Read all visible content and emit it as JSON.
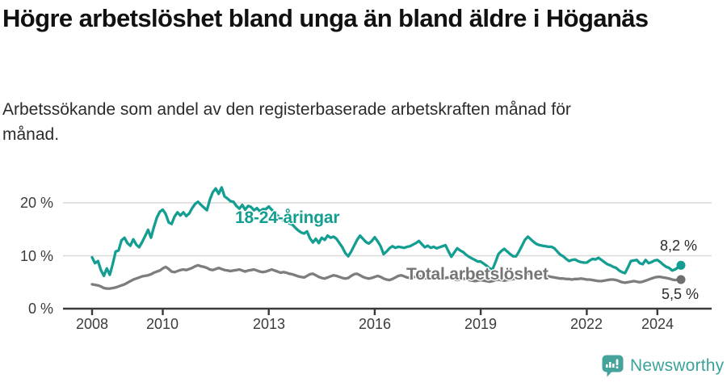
{
  "header": {
    "title": "Högre arbetslöshet bland unga än bland äldre i Höganäs",
    "subtitle": "Arbetssökande som andel av den registerbaserade arbetskraften månad för månad."
  },
  "chart_data": {
    "type": "line",
    "title": "Högre arbetslöshet bland unga än bland äldre i Höganäs",
    "unit": "%",
    "frequency": "monthly",
    "start_month": "2008-01",
    "end_month": "2024-09",
    "grid": "horizontal",
    "legend_position": "inline-labels",
    "x_tick_years": [
      2008,
      2010,
      2013,
      2016,
      2019,
      2022,
      2024
    ],
    "y_ticks": [
      {
        "value": 0,
        "label": "0 %"
      },
      {
        "value": 10,
        "label": "10 %"
      },
      {
        "value": 20,
        "label": "20 %"
      }
    ],
    "ylim": [
      0,
      23
    ],
    "series": [
      {
        "name": "18-24-åringar",
        "color": "#149e91",
        "dot_color": "#149e91",
        "end_value": 8.2,
        "end_label": "8,2 %",
        "values": [
          9.7,
          8.6,
          9.0,
          7.3,
          6.2,
          7.6,
          6.4,
          8.4,
          10.8,
          11.0,
          12.9,
          13.4,
          12.4,
          11.9,
          13.1,
          12.1,
          11.6,
          12.6,
          13.7,
          14.9,
          13.4,
          15.4,
          17.2,
          18.3,
          18.7,
          17.9,
          16.3,
          16.0,
          17.4,
          18.2,
          17.6,
          18.2,
          17.5,
          18.0,
          19.0,
          19.8,
          20.2,
          19.6,
          19.1,
          18.6,
          20.6,
          22.0,
          22.7,
          21.7,
          22.9,
          21.2,
          20.8,
          20.3,
          20.2,
          19.4,
          18.9,
          19.6,
          18.7,
          19.4,
          19.2,
          18.6,
          19.0,
          18.4,
          18.8,
          18.8,
          19.3,
          18.7,
          18.2,
          17.6,
          17.1,
          16.6,
          16.9,
          16.1,
          15.9,
          15.3,
          14.8,
          14.4,
          14.2,
          14.6,
          13.3,
          12.5,
          13.2,
          12.4,
          13.4,
          13.0,
          13.8,
          13.4,
          13.6,
          13.2,
          12.4,
          11.6,
          10.5,
          9.9,
          10.8,
          11.9,
          13.0,
          13.8,
          13.2,
          12.6,
          12.3,
          12.8,
          13.5,
          12.7,
          11.8,
          10.3,
          10.8,
          11.4,
          11.8,
          11.5,
          11.7,
          11.6,
          11.5,
          11.7,
          11.8,
          12.1,
          12.4,
          12.8,
          12.2,
          11.6,
          11.9,
          11.5,
          11.7,
          11.4,
          11.6,
          11.8,
          12.0,
          10.9,
          9.8,
          10.6,
          11.4,
          11.0,
          10.7,
          10.2,
          9.8,
          9.5,
          9.2,
          8.9,
          8.9,
          8.5,
          8.1,
          7.6,
          7.4,
          8.8,
          10.3,
          10.9,
          11.3,
          10.8,
          10.3,
          9.9,
          9.9,
          10.8,
          11.9,
          13.0,
          13.6,
          13.1,
          12.6,
          12.2,
          12.0,
          11.9,
          11.8,
          11.7,
          11.7,
          11.4,
          10.8,
          10.2,
          9.9,
          9.4,
          9.0,
          9.2,
          9.3,
          9.0,
          8.8,
          8.7,
          8.7,
          9.1,
          9.4,
          9.3,
          9.6,
          9.2,
          8.8,
          8.4,
          8.2,
          7.9,
          7.7,
          7.2,
          6.9,
          6.7,
          7.8,
          9.0,
          9.1,
          9.2,
          8.6,
          8.4,
          9.2,
          8.6,
          8.8,
          9.1,
          9.2,
          8.8,
          8.3,
          7.9,
          7.7,
          7.2,
          7.4,
          7.8,
          8.2
        ]
      },
      {
        "name": "Total arbetslöshet",
        "color": "#7d7d7d",
        "dot_color": "#6e6e6e",
        "end_value": 5.5,
        "end_label": "5,5 %",
        "values": [
          4.6,
          4.5,
          4.4,
          4.2,
          3.9,
          3.8,
          3.8,
          3.9,
          4.0,
          4.2,
          4.4,
          4.6,
          4.9,
          5.2,
          5.5,
          5.7,
          5.9,
          6.1,
          6.2,
          6.3,
          6.5,
          6.8,
          7.0,
          7.2,
          7.6,
          7.9,
          7.5,
          7.0,
          6.9,
          7.1,
          7.3,
          7.4,
          7.3,
          7.5,
          7.7,
          8.0,
          8.2,
          8.0,
          7.9,
          7.7,
          7.4,
          7.3,
          7.5,
          7.7,
          7.5,
          7.3,
          7.2,
          7.1,
          7.2,
          7.3,
          7.4,
          7.2,
          7.0,
          7.2,
          7.3,
          7.4,
          7.2,
          7.0,
          6.9,
          7.0,
          7.2,
          7.4,
          7.2,
          7.0,
          6.8,
          6.9,
          6.8,
          6.6,
          6.5,
          6.3,
          6.1,
          6.0,
          5.9,
          6.2,
          6.5,
          6.6,
          6.3,
          6.0,
          5.8,
          5.7,
          5.9,
          6.1,
          6.3,
          6.2,
          6.0,
          5.8,
          5.7,
          5.8,
          6.2,
          6.5,
          6.6,
          6.3,
          6.0,
          5.8,
          5.7,
          5.8,
          6.0,
          6.2,
          6.0,
          5.7,
          5.5,
          5.4,
          5.6,
          5.9,
          6.2,
          6.3,
          6.1,
          5.9,
          5.8,
          5.9,
          6.1,
          6.2,
          6.0,
          5.8,
          5.7,
          5.8,
          6.0,
          5.9,
          5.8,
          5.7,
          5.8,
          5.9,
          5.8,
          5.6,
          5.4,
          5.5,
          5.7,
          5.6,
          5.4,
          5.3,
          5.2,
          5.3,
          5.4,
          5.3,
          5.2,
          5.1,
          5.2,
          5.4,
          5.5,
          5.4,
          5.3,
          5.4,
          5.5,
          5.6,
          5.7,
          5.8,
          6.1,
          6.4,
          6.6,
          6.7,
          6.6,
          6.5,
          6.4,
          6.3,
          6.2,
          6.1,
          6.0,
          5.9,
          5.8,
          5.7,
          5.7,
          5.6,
          5.6,
          5.5,
          5.6,
          5.6,
          5.7,
          5.6,
          5.5,
          5.5,
          5.4,
          5.3,
          5.2,
          5.2,
          5.3,
          5.4,
          5.5,
          5.5,
          5.4,
          5.2,
          5.0,
          4.9,
          5.0,
          5.1,
          5.2,
          5.1,
          5.0,
          5.1,
          5.3,
          5.5,
          5.7,
          5.9,
          6.0,
          6.0,
          5.9,
          5.8,
          5.7,
          5.5,
          5.4,
          5.5,
          5.5
        ]
      }
    ],
    "colors": {
      "grid": "#d9d9d9",
      "axis": "#3a3a3a",
      "accent_teal": "#149e91",
      "line_gray": "#7d7d7d"
    }
  },
  "footer": {
    "brand": "Newsworthy",
    "brand_color": "#3ba39b",
    "icon": "newsworthy-speech-bubble-bar-chart"
  }
}
